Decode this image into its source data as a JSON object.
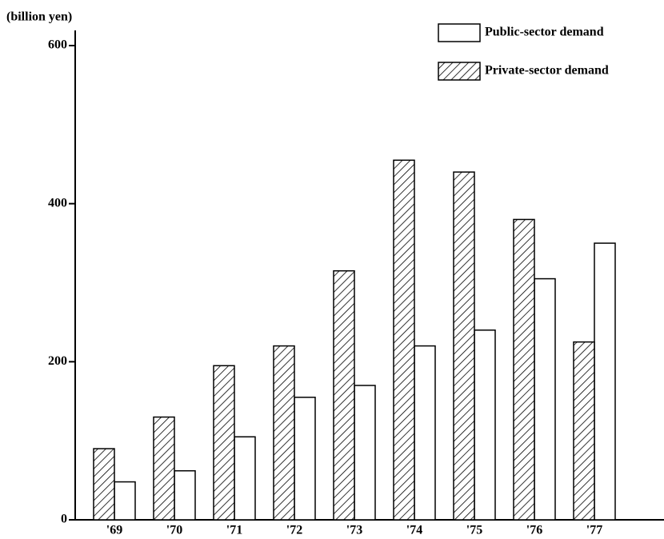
{
  "chart_data": {
    "type": "bar",
    "y_label": "(billion yen)",
    "categories": [
      "'69",
      "'70",
      "'71",
      "'72",
      "'73",
      "'74",
      "'75",
      "'76",
      "'77"
    ],
    "series": [
      {
        "name": "Public-sector demand",
        "color": "#ffffff",
        "values": [
          48,
          62,
          105,
          155,
          170,
          220,
          240,
          305,
          350
        ]
      },
      {
        "name": "Private-sector demand",
        "color": "#000000",
        "pattern": "hatch",
        "values": [
          90,
          130,
          195,
          220,
          315,
          455,
          440,
          380,
          225
        ]
      }
    ],
    "ylim": [
      0,
      600
    ],
    "yticks": [
      0,
      200,
      400,
      600
    ],
    "legend": "top-right"
  }
}
